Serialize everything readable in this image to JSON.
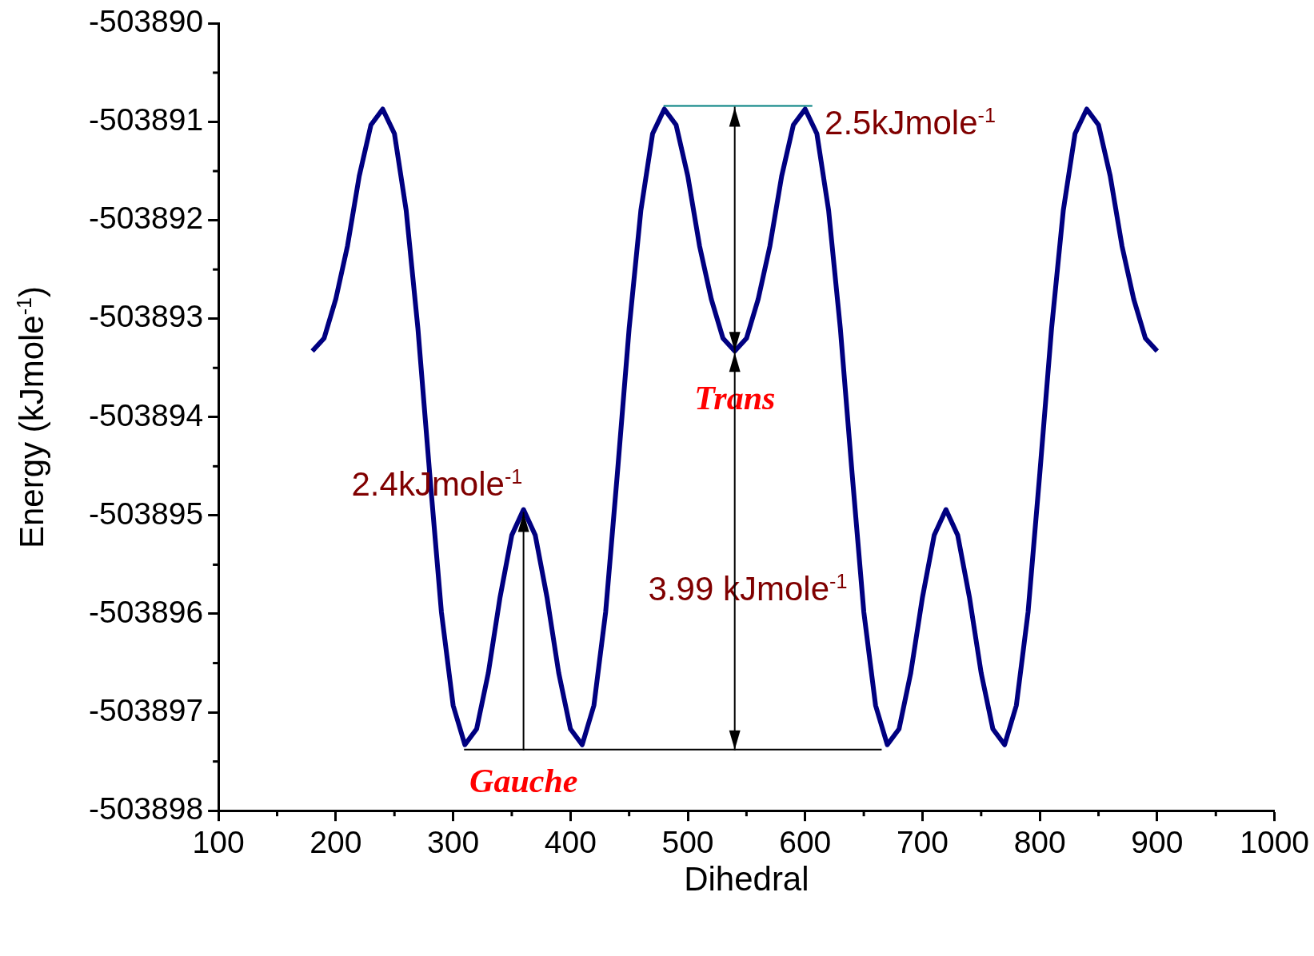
{
  "chart_data": {
    "type": "line",
    "xlabel": "Dihedral",
    "ylabel": "Energy (kJmole$^{-1}$)",
    "xlim": [
      100,
      1000
    ],
    "xticks": [
      100,
      200,
      300,
      400,
      500,
      600,
      700,
      800,
      900,
      1000
    ],
    "ylim": [
      -503898,
      -503890
    ],
    "yticks": [
      -503898,
      -503897,
      -503896,
      -503895,
      -503894,
      -503893,
      -503892,
      -503891,
      -503890
    ],
    "x": [
      180,
      190,
      200,
      210,
      220,
      230,
      240,
      250,
      260,
      270,
      280,
      290,
      300,
      310,
      320,
      330,
      340,
      350,
      360,
      370,
      380,
      390,
      400,
      410,
      420,
      430,
      440,
      450,
      460,
      470,
      480,
      490,
      500,
      510,
      520,
      530,
      540,
      550,
      560,
      570,
      580,
      590,
      600,
      610,
      620,
      630,
      640,
      650,
      660,
      670,
      680,
      690,
      700,
      710,
      720,
      730,
      740,
      750,
      760,
      770,
      780,
      790,
      800,
      810,
      820,
      830,
      840,
      850,
      860,
      870,
      880,
      890,
      900
    ],
    "series": [
      {
        "color": "#000080",
        "values": [
          -503893.33,
          -503893.2,
          -503892.8,
          -503892.26,
          -503891.55,
          -503891.03,
          -503890.87,
          -503891.12,
          -503891.9,
          -503893.1,
          -503894.57,
          -503895.98,
          -503896.93,
          -503897.33,
          -503897.17,
          -503896.6,
          -503895.83,
          -503895.2,
          -503894.94,
          -503895.2,
          -503895.83,
          -503896.6,
          -503897.17,
          -503897.33,
          -503896.93,
          -503895.98,
          -503894.57,
          -503893.1,
          -503891.9,
          -503891.12,
          -503890.87,
          -503891.03,
          -503891.55,
          -503892.26,
          -503892.8,
          -503893.2,
          -503893.33,
          -503893.2,
          -503892.8,
          -503892.26,
          -503891.55,
          -503891.03,
          -503890.87,
          -503891.12,
          -503891.9,
          -503893.1,
          -503894.57,
          -503895.98,
          -503896.93,
          -503897.33,
          -503897.17,
          -503896.6,
          -503895.83,
          -503895.2,
          -503894.94,
          -503895.2,
          -503895.83,
          -503896.6,
          -503897.17,
          -503897.33,
          -503896.93,
          -503895.98,
          -503894.57,
          -503893.1,
          -503891.9,
          -503891.12,
          -503890.87,
          -503891.03,
          -503891.55,
          -503892.26,
          -503892.8,
          -503893.2,
          -503893.33
        ]
      }
    ],
    "annotations": [
      "2.5kJmole$^{-1}$",
      "2.4kJmole$^{-1}$",
      "3.99 kJmole$^{-1}$",
      "Trans",
      "Gauche"
    ]
  }
}
